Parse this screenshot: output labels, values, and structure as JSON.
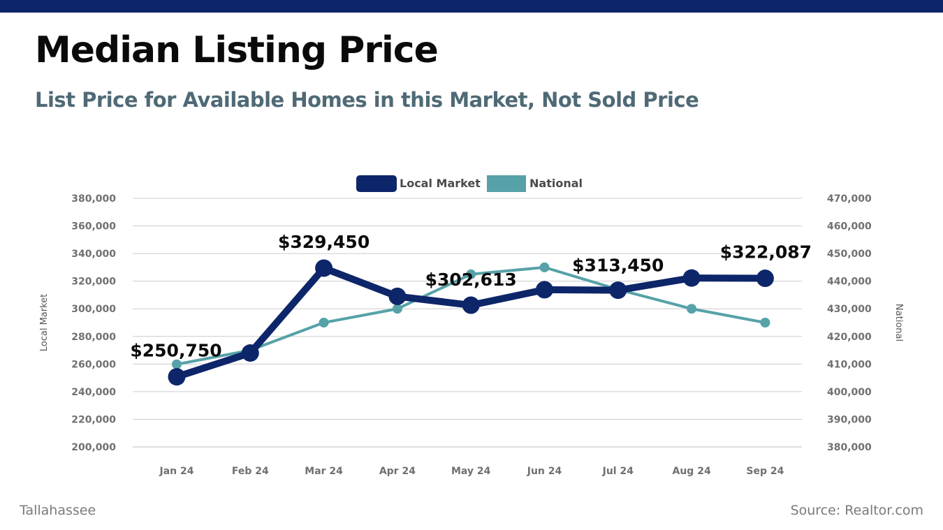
{
  "header": {
    "title": "Median Listing Price",
    "subtitle": "List Price for Available Homes in this Market, Not Sold Price"
  },
  "footer": {
    "location": "Tallahassee",
    "source": "Source: Realtor.com"
  },
  "colors": {
    "topbar": "#0d2569",
    "local": "#0d2569",
    "national": "#56a2a8",
    "grid": "#cccccc"
  },
  "chart_data": {
    "type": "line",
    "categories": [
      "Jan 24",
      "Feb 24",
      "Mar 24",
      "Apr 24",
      "May 24",
      "Jun 24",
      "Jul 24",
      "Aug 24",
      "Sep 24"
    ],
    "series": [
      {
        "name": "Local Market",
        "axis": "left",
        "values": [
          250750,
          268000,
          329450,
          309000,
          302613,
          313800,
          313450,
          322300,
          322087
        ]
      },
      {
        "name": "National",
        "axis": "right",
        "values": [
          409900,
          415000,
          425000,
          430000,
          442500,
          445000,
          437000,
          430000,
          425000
        ]
      }
    ],
    "left_axis": {
      "title": "Local Market",
      "ylim": [
        200000,
        380000
      ],
      "ticks": [
        "200,000",
        "220,000",
        "240,000",
        "260,000",
        "280,000",
        "300,000",
        "320,000",
        "340,000",
        "360,000",
        "380,000"
      ]
    },
    "right_axis": {
      "title": "National",
      "ylim": [
        380000,
        470000
      ],
      "ticks": [
        "380,000",
        "390,000",
        "400,000",
        "410,000",
        "420,000",
        "430,000",
        "440,000",
        "450,000",
        "460,000",
        "470,000"
      ]
    },
    "data_labels": [
      {
        "index": 0,
        "text": "$250,750"
      },
      {
        "index": 2,
        "text": "$329,450"
      },
      {
        "index": 4,
        "text": "$302,613"
      },
      {
        "index": 6,
        "text": "$313,450"
      },
      {
        "index": 8,
        "text": "$322,087"
      }
    ],
    "legend": {
      "position": "top-center",
      "entries": [
        "Local Market",
        "National"
      ]
    },
    "grid": true
  }
}
